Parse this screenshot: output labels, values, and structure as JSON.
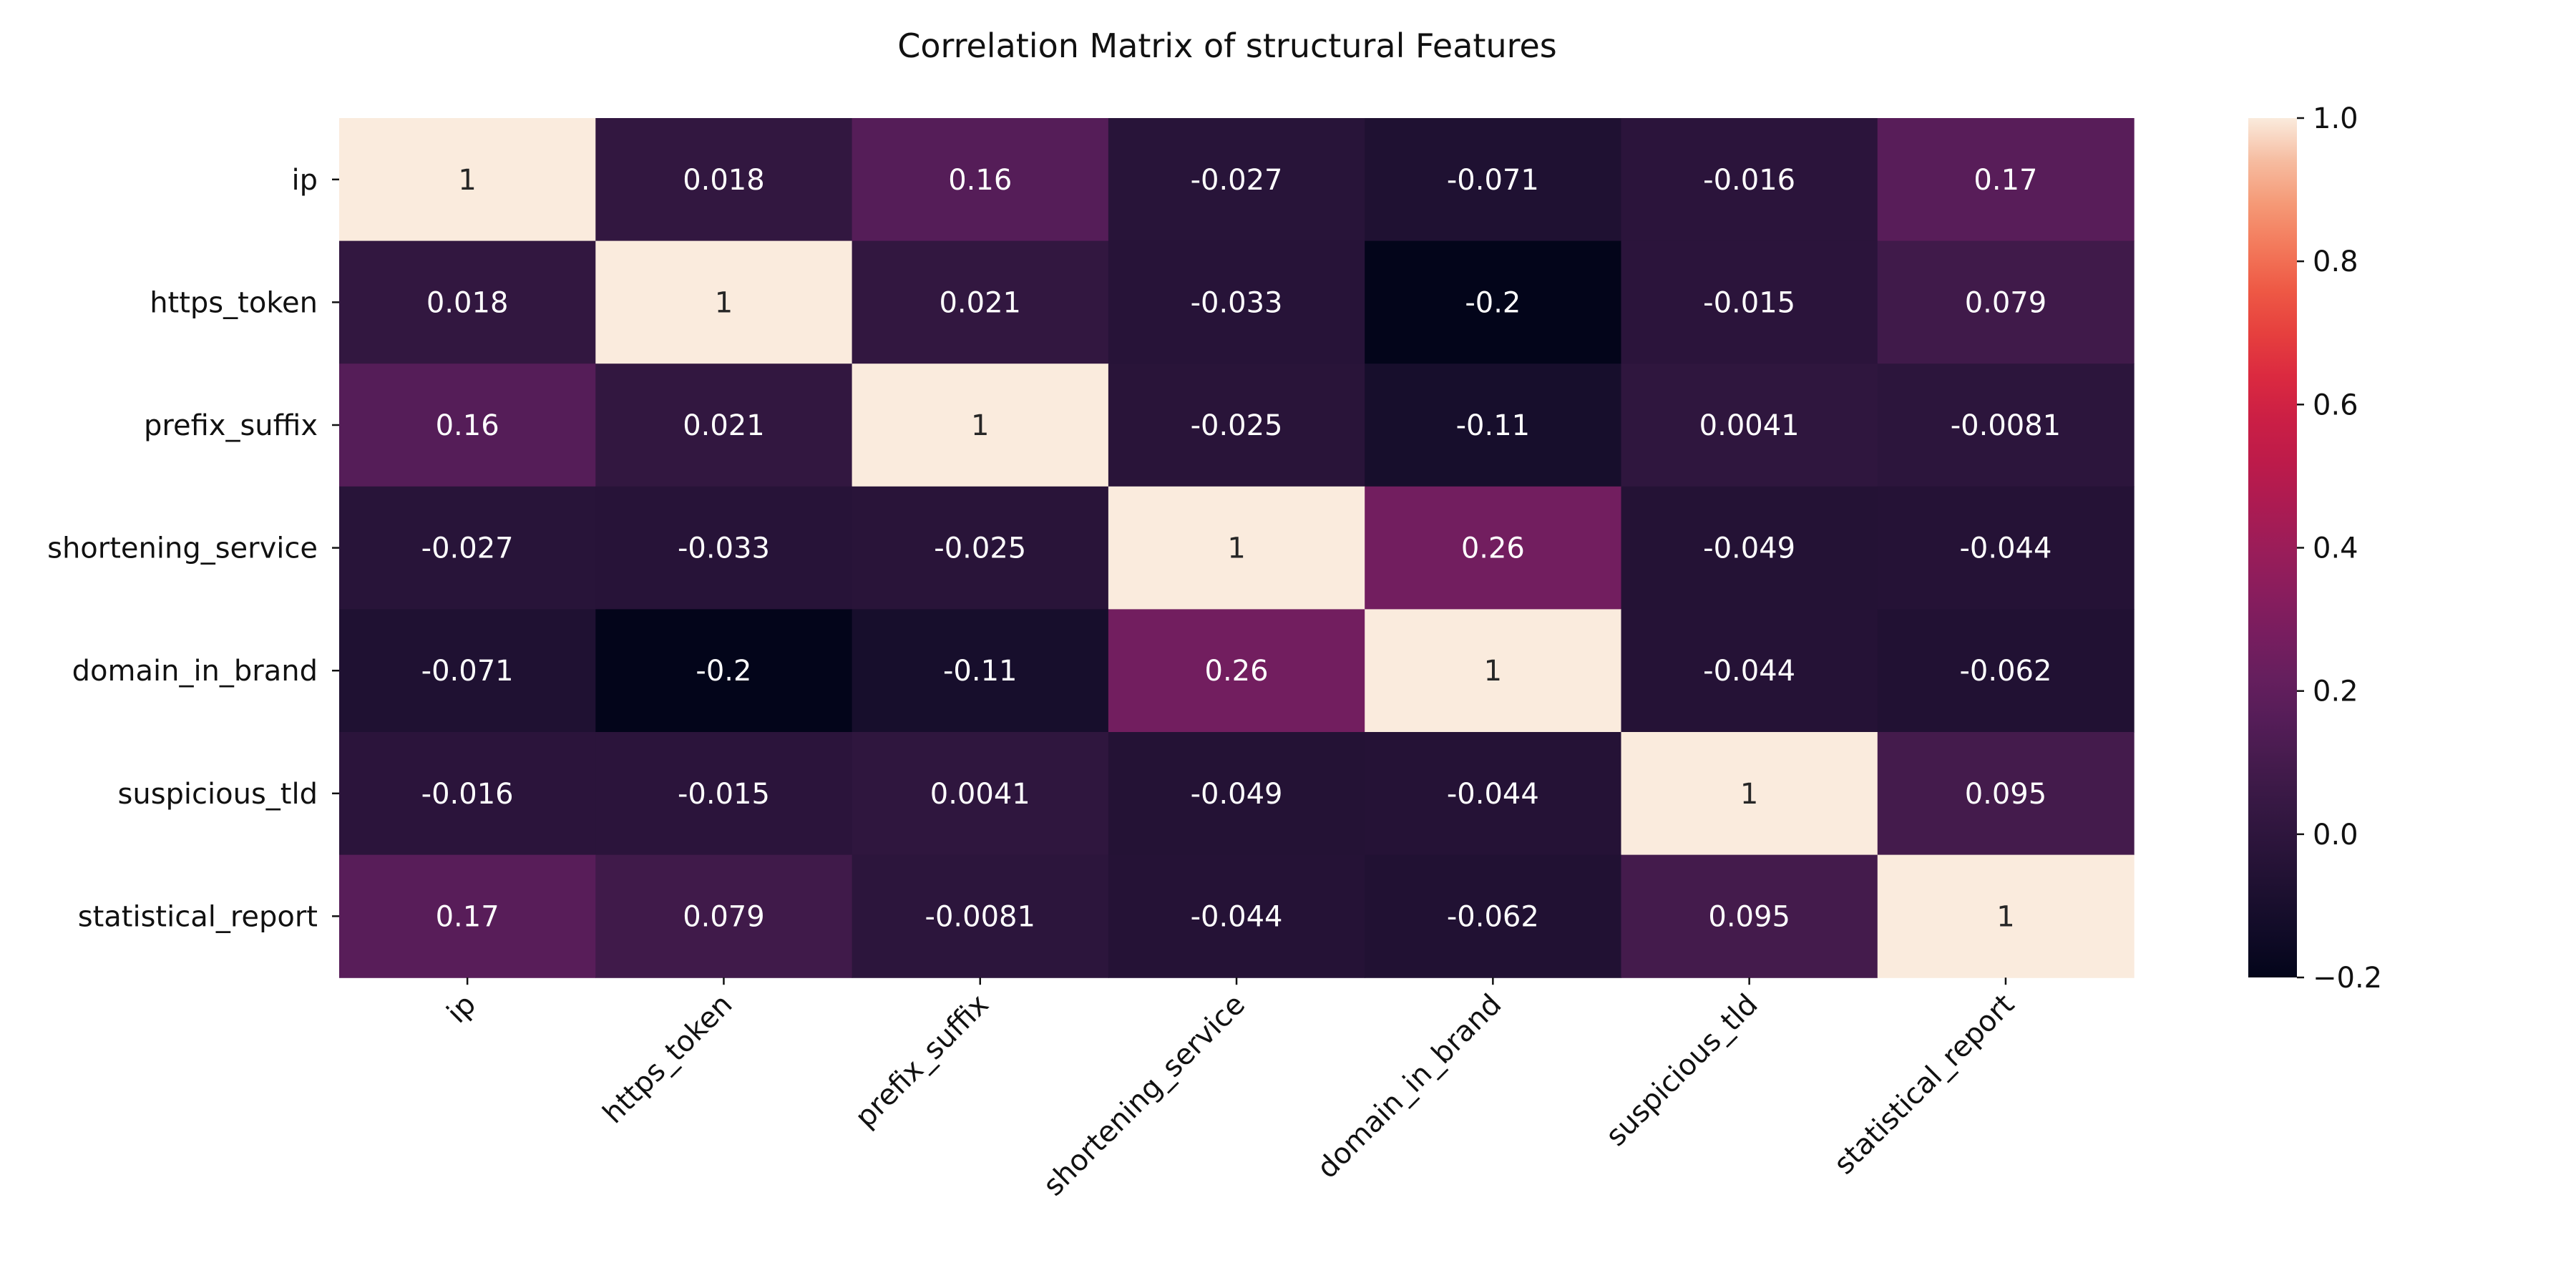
{
  "chart_data": {
    "type": "heatmap",
    "title": "Correlation Matrix of structural Features",
    "rows": [
      "ip",
      "https_token",
      "prefix_suffix",
      "shortening_service",
      "domain_in_brand",
      "suspicious_tld",
      "statistical_report"
    ],
    "columns": [
      "ip",
      "https_token",
      "prefix_suffix",
      "shortening_service",
      "domain_in_brand",
      "suspicious_tld",
      "statistical_report"
    ],
    "values": [
      [
        1,
        0.018,
        0.16,
        -0.027,
        -0.071,
        -0.016,
        0.17
      ],
      [
        0.018,
        1,
        0.021,
        -0.033,
        -0.2,
        -0.015,
        0.079
      ],
      [
        0.16,
        0.021,
        1,
        -0.025,
        -0.11,
        0.0041,
        -0.0081
      ],
      [
        -0.027,
        -0.033,
        -0.025,
        1,
        0.26,
        -0.049,
        -0.044
      ],
      [
        -0.071,
        -0.2,
        -0.11,
        0.26,
        1,
        -0.044,
        -0.062
      ],
      [
        -0.016,
        -0.015,
        0.0041,
        -0.049,
        -0.044,
        1,
        0.095
      ],
      [
        0.17,
        0.079,
        -0.0081,
        -0.044,
        -0.062,
        0.095,
        1
      ]
    ],
    "annotations": [
      [
        "1",
        "0.018",
        "0.16",
        "-0.027",
        "-0.071",
        "-0.016",
        "0.17"
      ],
      [
        "0.018",
        "1",
        "0.021",
        "-0.033",
        "-0.2",
        "-0.015",
        "0.079"
      ],
      [
        "0.16",
        "0.021",
        "1",
        "-0.025",
        "-0.11",
        "0.0041",
        "-0.0081"
      ],
      [
        "-0.027",
        "-0.033",
        "-0.025",
        "1",
        "0.26",
        "-0.049",
        "-0.044"
      ],
      [
        "-0.071",
        "-0.2",
        "-0.11",
        "0.26",
        "1",
        "-0.044",
        "-0.062"
      ],
      [
        "-0.016",
        "-0.015",
        "0.0041",
        "-0.049",
        "-0.044",
        "1",
        "0.095"
      ],
      [
        "0.17",
        "0.079",
        "-0.0081",
        "-0.044",
        "-0.062",
        "0.095",
        "1"
      ]
    ],
    "colorbar": {
      "min": -0.2,
      "max": 1.0,
      "ticks": [
        -0.2,
        0.0,
        0.2,
        0.4,
        0.6,
        0.8,
        1.0
      ],
      "tick_labels": [
        "−0.2",
        "0.0",
        "0.2",
        "0.4",
        "0.6",
        "0.8",
        "1.0"
      ]
    },
    "colormap": "rocket",
    "grid": false
  }
}
